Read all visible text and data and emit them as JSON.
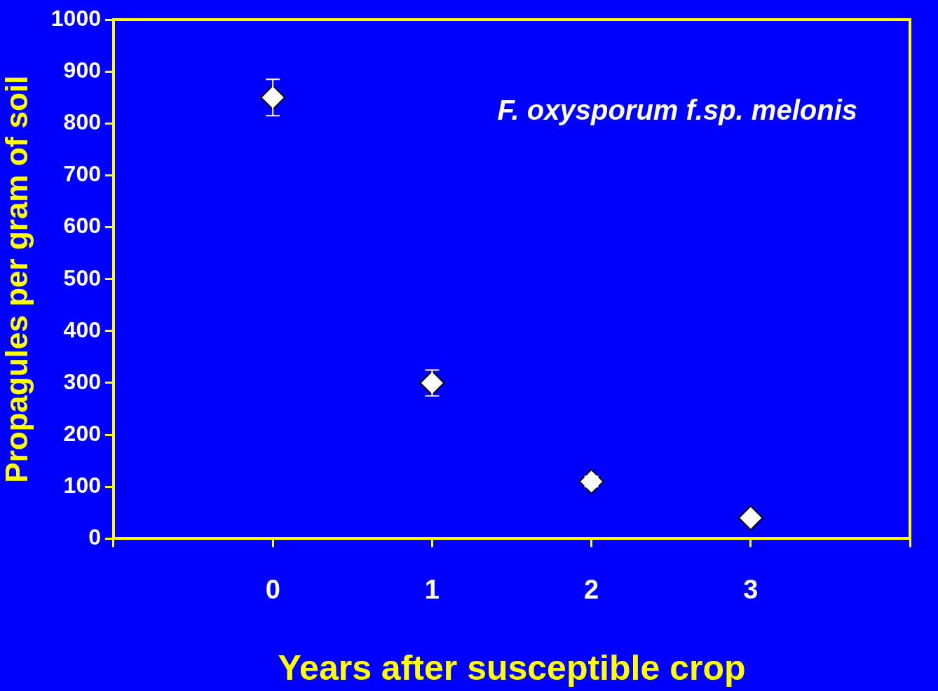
{
  "chart_data": {
    "type": "scatter",
    "xlabel": "Years after susceptible crop",
    "ylabel": "Propagules per gram of soil",
    "annotations": [
      "F. oxysporum f.sp. melonis"
    ],
    "x": [
      0,
      1,
      2,
      3
    ],
    "values": [
      850,
      300,
      110,
      40
    ],
    "errors": [
      35,
      25,
      10,
      null
    ],
    "color": "#ffffff",
    "marker": "diamond",
    "xlim": [
      -1,
      4
    ],
    "xticks": [
      {
        "value": -1,
        "label": null
      },
      0,
      1,
      2,
      3,
      {
        "value": 4,
        "label": null
      }
    ],
    "ylim": [
      0,
      1000
    ],
    "yticks": [
      0,
      100,
      200,
      300,
      400,
      500,
      600,
      700,
      800,
      900,
      1000
    ],
    "grid": false,
    "legend": false
  }
}
